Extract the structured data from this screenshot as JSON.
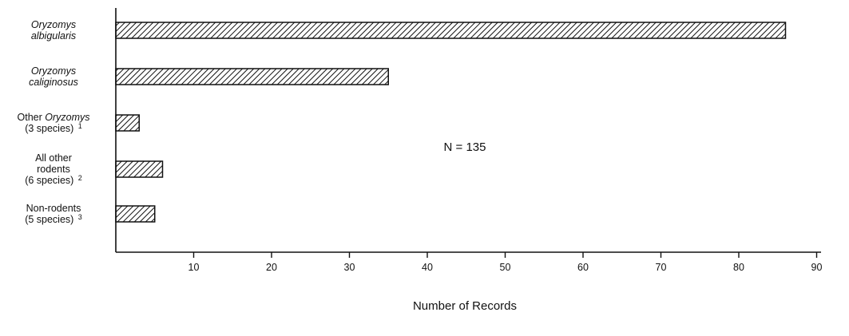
{
  "chart_data": {
    "type": "bar",
    "orientation": "horizontal",
    "categories": [
      {
        "lines": [
          {
            "parts": [
              {
                "t": "Oryzomys",
                "i": true
              }
            ]
          },
          {
            "parts": [
              {
                "t": "albigularis",
                "i": true
              }
            ]
          }
        ]
      },
      {
        "lines": [
          {
            "parts": [
              {
                "t": "Oryzomys",
                "i": true
              }
            ]
          },
          {
            "parts": [
              {
                "t": "caliginosus",
                "i": true
              }
            ]
          }
        ]
      },
      {
        "lines": [
          {
            "parts": [
              {
                "t": "Other ",
                "i": false
              },
              {
                "t": "Oryzomys",
                "i": true
              }
            ]
          },
          {
            "parts": [
              {
                "t": "(3 species) ",
                "i": false
              },
              {
                "t": "1",
                "i": false,
                "sup": true
              }
            ]
          }
        ]
      },
      {
        "lines": [
          {
            "parts": [
              {
                "t": "All other",
                "i": false
              }
            ]
          },
          {
            "parts": [
              {
                "t": "rodents",
                "i": false
              }
            ]
          },
          {
            "parts": [
              {
                "t": "(6 species) ",
                "i": false
              },
              {
                "t": "2",
                "i": false,
                "sup": true
              }
            ]
          }
        ]
      },
      {
        "lines": [
          {
            "parts": [
              {
                "t": "Non-rodents",
                "i": false
              }
            ]
          },
          {
            "parts": [
              {
                "t": "(5 species) ",
                "i": false
              },
              {
                "t": "3",
                "i": false,
                "sup": true
              }
            ]
          }
        ]
      }
    ],
    "values": [
      86,
      35,
      3,
      6,
      5
    ],
    "xlim": [
      0,
      94
    ],
    "xticks": [
      10,
      20,
      30,
      40,
      50,
      60,
      70,
      80,
      90
    ],
    "xlabel": "Number of Records",
    "ylabel": "",
    "title": "",
    "annotation": "N = 135",
    "bar_fill": "diagonal-hatch",
    "grid": false,
    "legend": "none"
  }
}
